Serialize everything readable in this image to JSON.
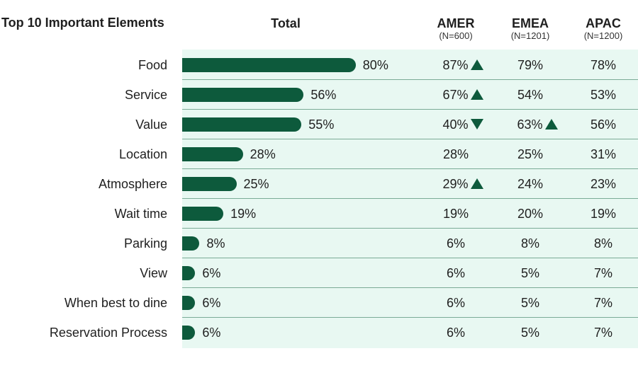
{
  "colors": {
    "bar": "#0d5a3c",
    "panel": "#e8f8f2",
    "arrow": "#0d5a3c"
  },
  "header": {
    "title": "Top 10 Important Elements",
    "total": "Total",
    "amer": {
      "name": "AMER",
      "n": "(N=600)"
    },
    "emea": {
      "name": "EMEA",
      "n": "(N=1201)"
    },
    "apac": {
      "name": "APAC",
      "n": "(N=1200)"
    }
  },
  "chart_data": {
    "type": "bar",
    "title": "Top 10 Important Elements",
    "categories": [
      "Food",
      "Service",
      "Value",
      "Location",
      "Atmosphere",
      "Wait time",
      "Parking",
      "View",
      "When best to dine",
      "Reservation Process"
    ],
    "series": [
      {
        "name": "Total",
        "values": [
          80,
          56,
          55,
          28,
          25,
          19,
          8,
          6,
          6,
          6
        ]
      }
    ],
    "value_labels": [
      "80%",
      "56%",
      "55%",
      "28%",
      "25%",
      "19%",
      "8%",
      "6%",
      "6%",
      "6%"
    ],
    "xlim": [
      0,
      100
    ],
    "regions": {
      "AMER": {
        "values": [
          "87%",
          "67%",
          "40%",
          "28%",
          "29%",
          "19%",
          "6%",
          "6%",
          "6%",
          "6%"
        ],
        "arrows": [
          "up",
          "up",
          "down",
          "",
          "up",
          "",
          "",
          "",
          "",
          ""
        ]
      },
      "EMEA": {
        "values": [
          "79%",
          "54%",
          "63%",
          "25%",
          "24%",
          "20%",
          "8%",
          "5%",
          "5%",
          "5%"
        ],
        "arrows": [
          "",
          "",
          "up",
          "",
          "",
          "",
          "",
          "",
          "",
          ""
        ]
      },
      "APAC": {
        "values": [
          "78%",
          "53%",
          "56%",
          "31%",
          "23%",
          "19%",
          "8%",
          "7%",
          "7%",
          "7%"
        ],
        "arrows": [
          "",
          "",
          "",
          "",
          "",
          "",
          "",
          "",
          "",
          ""
        ]
      }
    }
  }
}
